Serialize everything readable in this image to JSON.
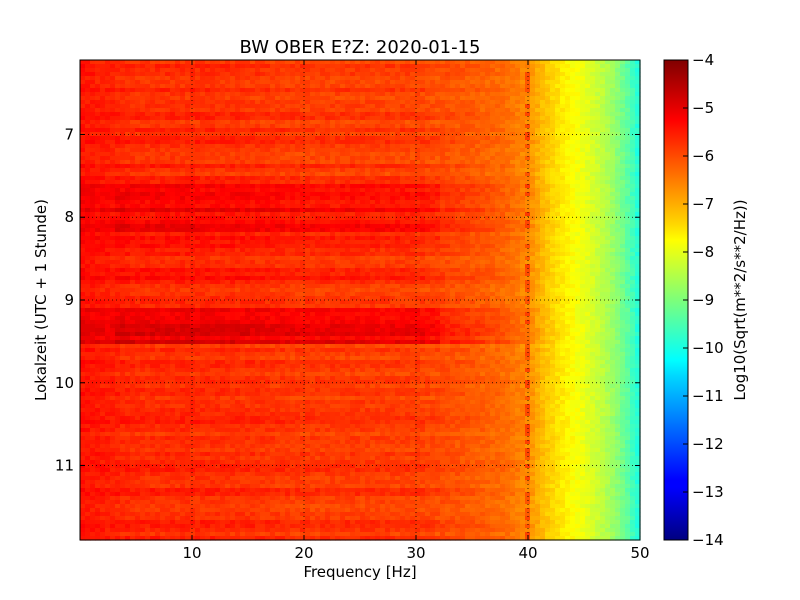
{
  "chart_data": {
    "type": "heatmap",
    "title": "BW OBER E?Z: 2020-01-15",
    "xlabel": "Frequency [Hz]",
    "ylabel": "Lokalzeit (UTC + 1 Stunde)",
    "xlim": [
      0,
      50
    ],
    "ylim": [
      6.1,
      11.9
    ],
    "y_inverted": true,
    "x_ticks": [
      10,
      20,
      30,
      40,
      50
    ],
    "x_tick_labels": [
      "10",
      "20",
      "30",
      "40",
      "50"
    ],
    "y_ticks": [
      7,
      8,
      9,
      10,
      11
    ],
    "y_tick_labels": [
      "7",
      "8",
      "9",
      "10",
      "11"
    ],
    "grid": true,
    "colormap": "jet",
    "colorbar": {
      "label": "Log10(Sqrt(m**2/s**2/Hz))",
      "range": [
        -14,
        -4
      ],
      "ticks": [
        -4,
        -5,
        -6,
        -7,
        -8,
        -9,
        -10,
        -11,
        -12,
        -13,
        -14
      ],
      "tick_labels": [
        "−4",
        "−5",
        "−6",
        "−7",
        "−8",
        "−9",
        "−10",
        "−11",
        "−12",
        "−13",
        "−14"
      ]
    },
    "spectral_profile": {
      "frequency_hz": [
        0,
        2,
        5,
        10,
        15,
        20,
        25,
        30,
        35,
        38,
        40,
        41,
        42,
        43,
        44,
        45,
        46,
        47,
        48,
        49,
        50
      ],
      "log10_amplitude": [
        -5.4,
        -5.5,
        -5.65,
        -5.65,
        -5.7,
        -5.8,
        -5.8,
        -5.85,
        -6.1,
        -6.3,
        -6.6,
        -7.0,
        -7.3,
        -7.55,
        -7.75,
        -7.95,
        -8.2,
        -8.5,
        -8.9,
        -9.4,
        -10.0
      ]
    },
    "high_energy_periods": [
      {
        "from": 7.6,
        "to": 8.2,
        "delta": 0.6
      },
      {
        "from": 8.25,
        "to": 8.45,
        "delta": 0.35
      },
      {
        "from": 8.6,
        "to": 8.75,
        "delta": 0.45
      },
      {
        "from": 9.1,
        "to": 9.55,
        "delta": 0.75
      }
    ],
    "narrowband_line_hz": 40
  }
}
